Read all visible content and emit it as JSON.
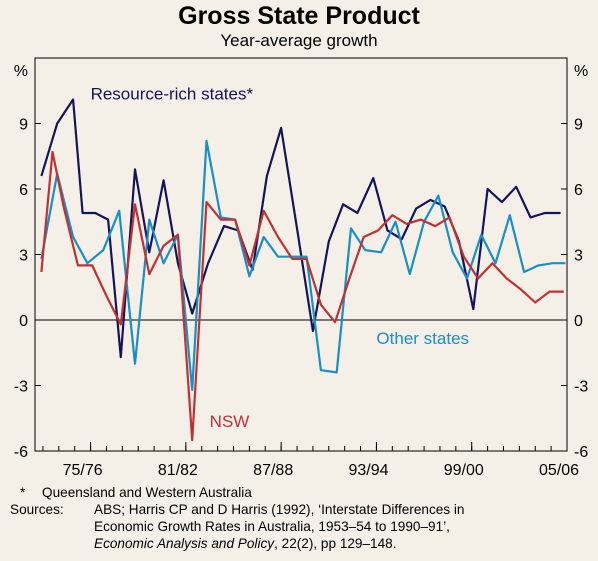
{
  "title": "Gross State Product",
  "subtitle": "Year-average growth",
  "chart_data": {
    "type": "line",
    "title": "Gross State Product",
    "subtitle": "Year-average growth",
    "ylabel_left": "%",
    "ylabel_right": "%",
    "ylim": [
      -6,
      12
    ],
    "yticks": [
      -6,
      -3,
      0,
      3,
      6,
      9
    ],
    "xlim": [
      1972.5,
      2006
    ],
    "xticks": [
      {
        "label": "75/76",
        "year": 1976
      },
      {
        "label": "81/82",
        "year": 1982
      },
      {
        "label": "87/88",
        "year": 1988
      },
      {
        "label": "93/94",
        "year": 1994
      },
      {
        "label": "99/00",
        "year": 2000
      },
      {
        "label": "05/06",
        "year": 2006
      }
    ],
    "x_minor_ticks_per_year": 1,
    "grid": false,
    "zero_line": true,
    "series": [
      {
        "name": "Resource-rich states*",
        "color": "#14145a",
        "label_year": 1976.0,
        "label_value": 10.1,
        "x": [
          1972.9,
          1973.9,
          1974.9,
          1975.5,
          1976.3,
          1977.1,
          1977.9,
          1978.8,
          1979.7,
          1980.6,
          1981.5,
          1982.4,
          1983.4,
          1984.4,
          1985.3,
          1986.2,
          1987.1,
          1988.0,
          1989.0,
          1990.0,
          1991.0,
          1991.9,
          1992.8,
          1993.8,
          1994.7,
          1995.6,
          1996.5,
          1997.4,
          1998.3,
          1999.2,
          2000.1,
          2001.0,
          2001.9,
          2002.8,
          2003.7,
          2004.6,
          2005.6
        ],
        "y": [
          6.6,
          9.0,
          10.1,
          4.9,
          4.9,
          4.6,
          -1.7,
          6.9,
          3.1,
          6.4,
          2.6,
          0.3,
          2.6,
          4.3,
          4.1,
          2.3,
          6.6,
          8.8,
          4.2,
          -0.5,
          3.6,
          5.3,
          4.9,
          6.5,
          4.1,
          3.7,
          5.1,
          5.5,
          5.2,
          3.6,
          0.5,
          6.0,
          5.4,
          6.1,
          4.7,
          4.9,
          4.9
        ]
      },
      {
        "name": "Other states",
        "color": "#1a8fc4",
        "label_year": 1994.0,
        "label_value": -1.1,
        "x": [
          1972.9,
          1973.9,
          1974.9,
          1975.8,
          1976.8,
          1977.8,
          1978.8,
          1979.7,
          1980.6,
          1981.5,
          1982.4,
          1983.3,
          1984.2,
          1985.1,
          1986.0,
          1986.9,
          1987.8,
          1988.7,
          1989.6,
          1990.5,
          1991.5,
          1992.4,
          1993.3,
          1994.3,
          1995.2,
          1996.1,
          1997.0,
          1997.9,
          1998.8,
          1999.7,
          2000.6,
          2001.5,
          2002.4,
          2003.3,
          2004.2,
          2005.1,
          2005.9
        ],
        "y": [
          2.8,
          6.7,
          3.8,
          2.6,
          3.2,
          5.0,
          -2.0,
          4.6,
          2.6,
          3.9,
          -3.2,
          8.2,
          4.7,
          4.6,
          2.0,
          3.8,
          2.9,
          2.9,
          2.9,
          -2.3,
          -2.4,
          4.2,
          3.2,
          3.1,
          4.5,
          2.1,
          4.5,
          5.7,
          3.1,
          1.9,
          3.9,
          2.6,
          4.8,
          2.2,
          2.5,
          2.6,
          2.6
        ]
      },
      {
        "name": "NSW",
        "color": "#c03232",
        "label_year": 1983.5,
        "label_value": -4.9,
        "x": [
          1972.9,
          1973.6,
          1974.3,
          1975.2,
          1976.1,
          1977.0,
          1977.9,
          1978.8,
          1979.7,
          1980.6,
          1981.5,
          1982.4,
          1983.3,
          1984.2,
          1985.1,
          1986.0,
          1986.9,
          1987.8,
          1988.7,
          1989.6,
          1990.5,
          1991.4,
          1992.3,
          1993.2,
          1994.1,
          1995.0,
          1995.9,
          1996.8,
          1997.7,
          1998.6,
          1999.5,
          2000.4,
          2001.3,
          2002.2,
          2003.1,
          2004.0,
          2004.9,
          2005.8
        ],
        "y": [
          2.2,
          7.7,
          5.2,
          2.5,
          2.5,
          1.1,
          -0.2,
          5.3,
          2.1,
          3.4,
          3.9,
          -5.5,
          5.4,
          4.6,
          4.6,
          2.5,
          5.0,
          3.8,
          2.8,
          2.8,
          0.7,
          -0.1,
          1.9,
          3.8,
          4.1,
          4.8,
          4.4,
          4.6,
          4.3,
          4.7,
          2.9,
          1.9,
          2.6,
          1.9,
          1.4,
          0.8,
          1.3,
          1.3
        ]
      }
    ]
  },
  "footnotes": {
    "star_key": "*",
    "star_text": "Queensland and Western Australia",
    "sources_key": "Sources:",
    "sources_line1": "ABS; Harris CP and D Harris (1992), ‘Interstate Differences in",
    "sources_line2": "Economic Growth Rates in Australia, 1953–54 to 1990–91’,",
    "sources_line3_italic": "Economic Analysis and Policy",
    "sources_line3_rest": ", 22(2), pp 129–148."
  }
}
